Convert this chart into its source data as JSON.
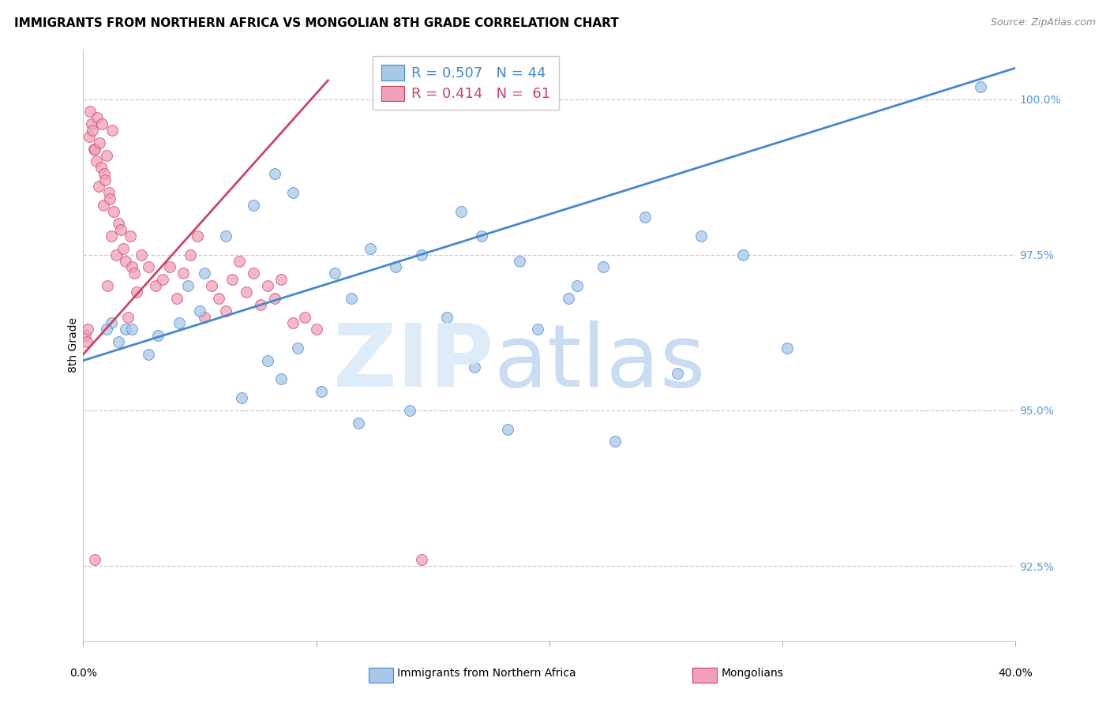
{
  "title": "IMMIGRANTS FROM NORTHERN AFRICA VS MONGOLIAN 8TH GRADE CORRELATION CHART",
  "source": "Source: ZipAtlas.com",
  "ylabel_left": "8th Grade",
  "blue_color": "#a8c8e8",
  "pink_color": "#f0a0b8",
  "blue_line_color": "#4488cc",
  "pink_line_color": "#cc4466",
  "right_tick_color": "#5599dd",
  "xmin": 0.0,
  "xmax": 40.0,
  "ymin": 91.3,
  "ymax": 100.8,
  "yticks_right": [
    92.5,
    95.0,
    97.5,
    100.0
  ],
  "xtick_vals": [
    0.0,
    10.0,
    20.0,
    30.0,
    40.0
  ],
  "blue_scatter_x": [
    1.2,
    1.5,
    1.8,
    2.1,
    2.8,
    3.2,
    4.1,
    4.5,
    5.0,
    5.2,
    6.1,
    6.8,
    7.3,
    7.9,
    8.2,
    8.5,
    9.0,
    9.2,
    10.2,
    10.8,
    11.5,
    11.8,
    12.3,
    13.4,
    14.0,
    14.5,
    15.6,
    16.2,
    16.8,
    17.1,
    18.2,
    18.7,
    19.5,
    20.8,
    21.2,
    22.3,
    22.8,
    24.1,
    25.5,
    26.5,
    28.3,
    30.2,
    38.5,
    1.0
  ],
  "blue_scatter_y": [
    96.4,
    96.1,
    96.3,
    96.3,
    95.9,
    96.2,
    96.4,
    97.0,
    96.6,
    97.2,
    97.8,
    95.2,
    98.3,
    95.8,
    98.8,
    95.5,
    98.5,
    96.0,
    95.3,
    97.2,
    96.8,
    94.8,
    97.6,
    97.3,
    95.0,
    97.5,
    96.5,
    98.2,
    95.7,
    97.8,
    94.7,
    97.4,
    96.3,
    96.8,
    97.0,
    97.3,
    94.5,
    98.1,
    95.6,
    97.8,
    97.5,
    96.0,
    100.2,
    96.3
  ],
  "pink_scatter_x": [
    0.1,
    0.15,
    0.2,
    0.25,
    0.3,
    0.35,
    0.4,
    0.45,
    0.5,
    0.55,
    0.6,
    0.65,
    0.7,
    0.75,
    0.8,
    0.85,
    0.9,
    0.95,
    1.0,
    1.05,
    1.1,
    1.15,
    1.2,
    1.3,
    1.4,
    1.5,
    1.6,
    1.7,
    1.8,
    1.9,
    2.0,
    2.1,
    2.2,
    2.3,
    2.5,
    2.8,
    3.1,
    3.4,
    3.7,
    4.0,
    4.3,
    4.6,
    4.9,
    5.2,
    5.5,
    5.8,
    6.1,
    6.4,
    6.7,
    7.0,
    7.3,
    7.6,
    7.9,
    8.2,
    8.5,
    9.0,
    9.5,
    10.0,
    0.5,
    14.5,
    1.25
  ],
  "pink_scatter_y": [
    96.2,
    96.1,
    96.3,
    99.4,
    99.8,
    99.6,
    99.5,
    99.2,
    99.2,
    99.0,
    99.7,
    98.6,
    99.3,
    98.9,
    99.6,
    98.3,
    98.8,
    98.7,
    99.1,
    97.0,
    98.5,
    98.4,
    97.8,
    98.2,
    97.5,
    98.0,
    97.9,
    97.6,
    97.4,
    96.5,
    97.8,
    97.3,
    97.2,
    96.9,
    97.5,
    97.3,
    97.0,
    97.1,
    97.3,
    96.8,
    97.2,
    97.5,
    97.8,
    96.5,
    97.0,
    96.8,
    96.6,
    97.1,
    97.4,
    96.9,
    97.2,
    96.7,
    97.0,
    96.8,
    97.1,
    96.4,
    96.5,
    96.3,
    92.6,
    92.6,
    99.5
  ],
  "blue_trend_x": [
    0.0,
    40.0
  ],
  "blue_trend_y": [
    95.8,
    100.5
  ],
  "pink_trend_x": [
    0.0,
    10.5
  ],
  "pink_trend_y": [
    95.9,
    100.3
  ],
  "title_fontsize": 11,
  "tick_fontsize": 10,
  "legend_fontsize": 13,
  "watermark_fontsize": 80
}
